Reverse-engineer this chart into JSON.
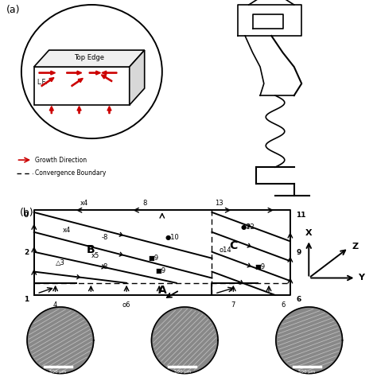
{
  "fig_width": 4.74,
  "fig_height": 4.74,
  "bg_color": "#ffffff",
  "label_a": "(a)",
  "label_b": "(b)",
  "legend_growth": "Growth Direction",
  "legend_boundary": "Convergence Boundary",
  "top_edge_text": "Top Edge",
  "le_text": "L.E.",
  "scale_bar_text": "500 μm",
  "gray_circle_color": "#888888",
  "red_color": "#cc0000",
  "b_diag_lines": [
    [
      0.0,
      5.7,
      13.5,
      1.2
    ],
    [
      0.0,
      4.3,
      13.5,
      -0.2
    ],
    [
      0.0,
      2.9,
      11.0,
      -0.2
    ],
    [
      0.0,
      1.5,
      8.0,
      -0.2
    ]
  ],
  "c_diag_lines": [
    [
      12.5,
      5.7,
      18.0,
      3.3
    ],
    [
      12.5,
      4.3,
      18.0,
      1.9
    ],
    [
      12.5,
      2.9,
      18.0,
      0.5
    ],
    [
      12.5,
      1.5,
      18.0,
      -0.9
    ]
  ],
  "node_labels": {
    "corner_tl": "0",
    "left_mid1": "2",
    "left_bot": "1",
    "top_x4": "x4",
    "top_8": "8",
    "top_13": "13",
    "right_11": "11",
    "right_9a": "9",
    "right_6": "6",
    "bot_4": "4",
    "bot_06": "o6",
    "bot_7": "7",
    "inner_x4": "x4",
    "inner_minus8a": "-8",
    "inner_dot10": "●10",
    "inner_dot12": "●12",
    "inner_B": "B",
    "inner_x5": "x5",
    "inner_sq9a": "■9",
    "inner_o14": "o14",
    "inner_C": "C",
    "inner_sq9b": "■9",
    "inner_delta3": "△3",
    "inner_minus8b": "-8",
    "inner_sq9c": "■9",
    "inner_sq9d": "■9",
    "inner_A": "A"
  }
}
